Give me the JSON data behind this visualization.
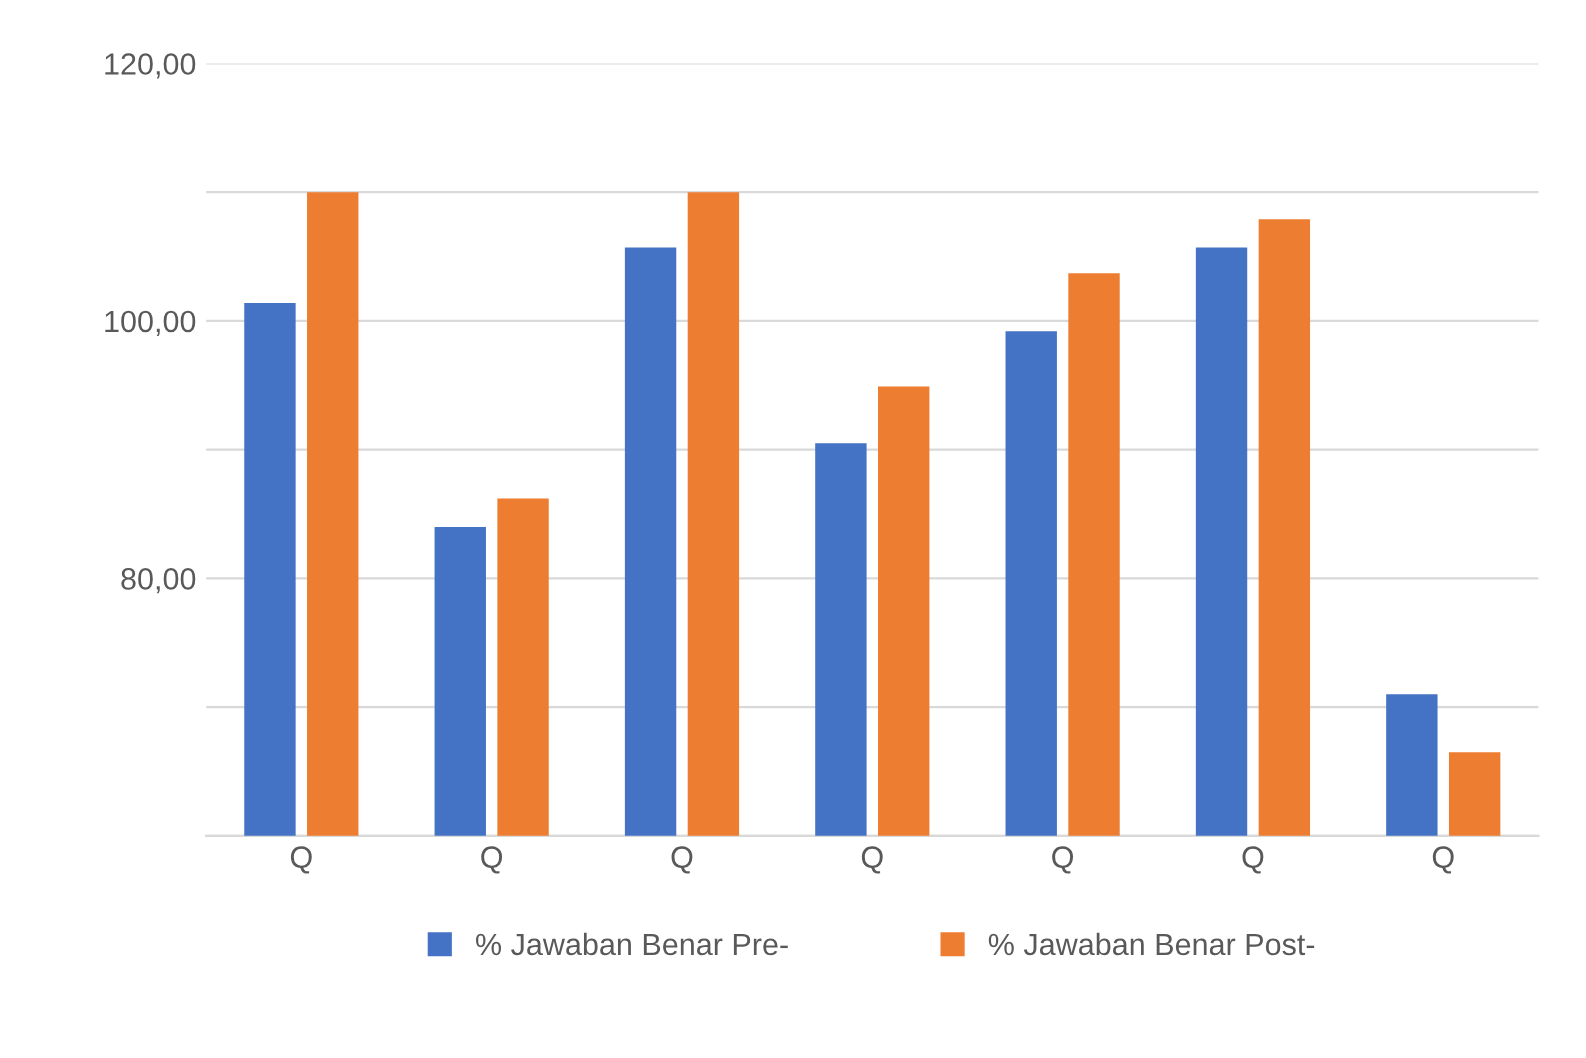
{
  "chart_data": {
    "type": "bar",
    "categories": [
      "Q",
      "Q",
      "Q",
      "Q",
      "Q",
      "Q",
      "Q"
    ],
    "series": [
      {
        "name": "% Jawaban Benar Pre-",
        "color": "#4472c4",
        "values": [
          101.4,
          84.0,
          105.7,
          90.5,
          99.2,
          105.7,
          71.0
        ]
      },
      {
        "name": "% Jawaban Benar Post-",
        "color": "#ed7d31",
        "values": [
          110.0,
          86.2,
          110.0,
          94.9,
          103.7,
          107.9,
          66.5
        ]
      }
    ],
    "ylim": [
      60,
      120
    ],
    "yticks": [
      {
        "value": 60,
        "label": null
      },
      {
        "value": 70,
        "label": null
      },
      {
        "value": 80,
        "label": "80,00"
      },
      {
        "value": 90,
        "label": null
      },
      {
        "value": 100,
        "label": "100,00"
      },
      {
        "value": 110,
        "label": null
      },
      {
        "value": 120,
        "label": "120,00"
      }
    ],
    "grid": "y",
    "legend": "bottom"
  }
}
